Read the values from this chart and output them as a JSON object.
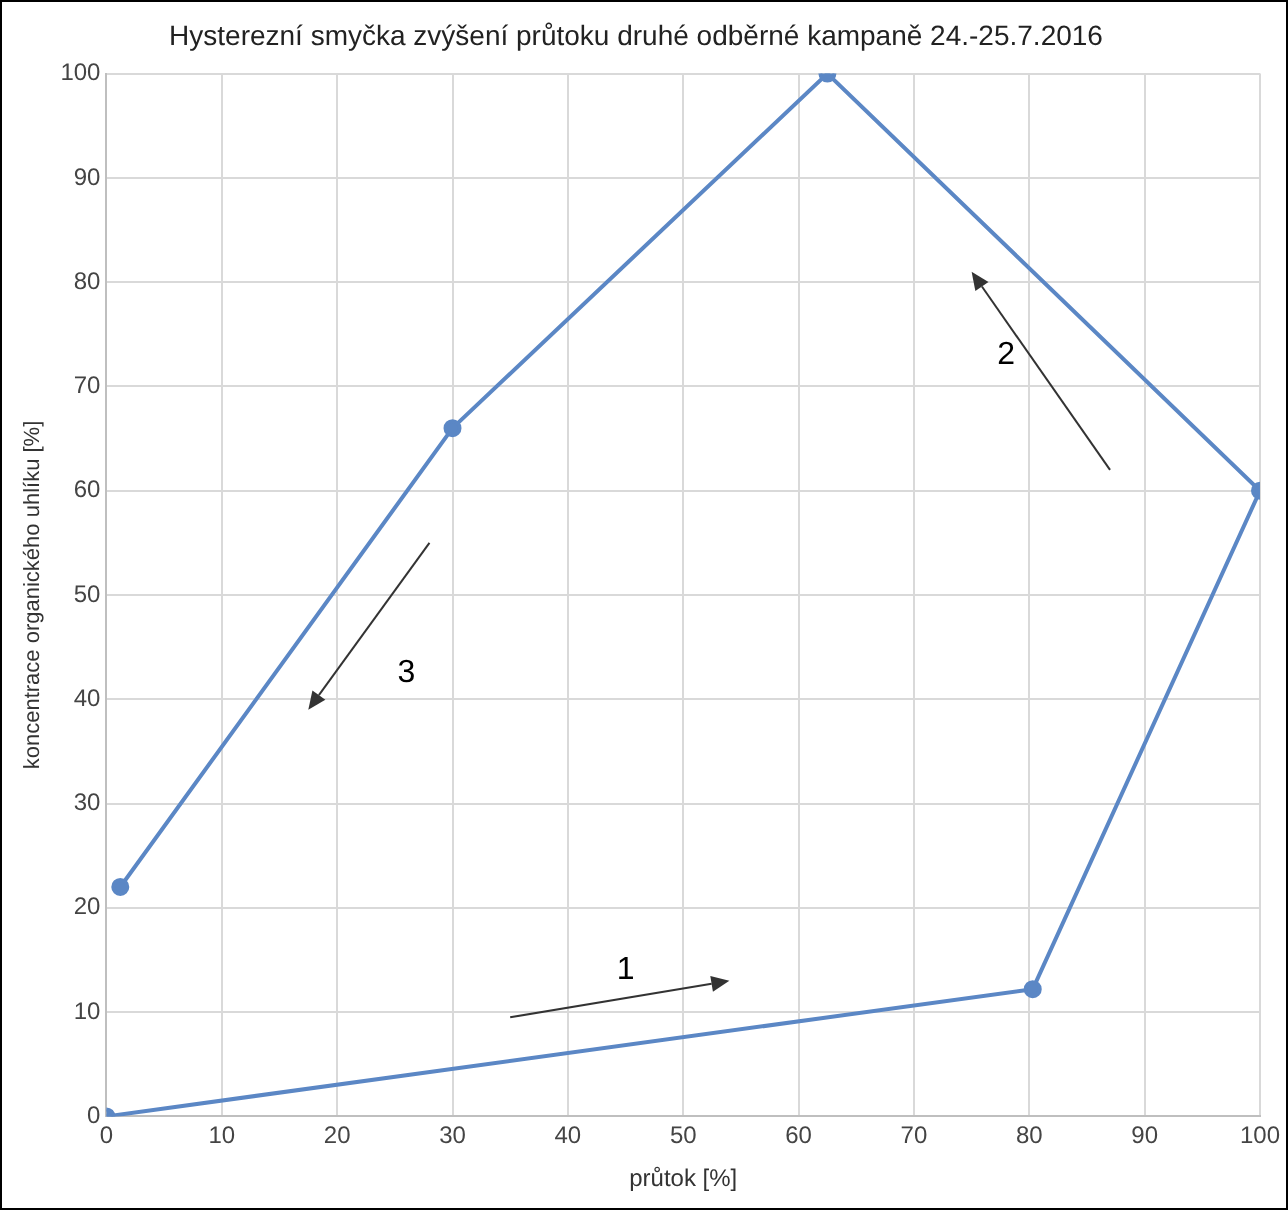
{
  "chart_data": {
    "type": "line",
    "title": "Hysterezní smyčka zvýšení průtoku druhé odběrné kampaně 24.-25.7.2016",
    "xlabel": "průtok [%]",
    "ylabel": "koncentrace organického uhlíku [%]",
    "x": [
      0,
      80.3,
      100,
      62.5,
      30,
      1.2
    ],
    "series": [
      {
        "color": "#5b87c5",
        "values": [
          0,
          12.2,
          60,
          100,
          66,
          22
        ]
      }
    ],
    "xlim": [
      0,
      100
    ],
    "xticks": [
      0,
      10,
      20,
      30,
      40,
      50,
      60,
      70,
      80,
      90,
      100
    ],
    "ylim": [
      0,
      100
    ],
    "yticks": [
      0,
      10,
      20,
      30,
      40,
      50,
      60,
      70,
      80,
      90,
      100
    ],
    "grid": true,
    "legend": false,
    "marker": "circle",
    "line_style": "solid",
    "annotations": [
      "1",
      "2",
      "3"
    ]
  }
}
